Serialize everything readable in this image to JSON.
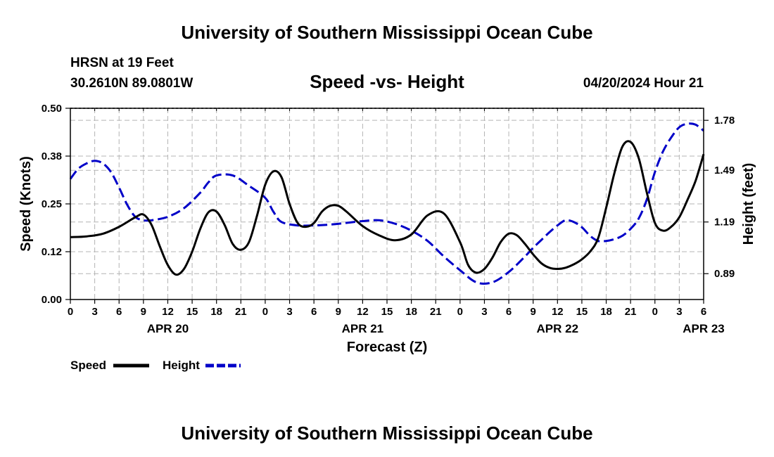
{
  "title": "University of Southern Mississippi Ocean Cube",
  "footer_title": "University of Southern Mississippi Ocean Cube",
  "station": "HRSN at 19 Feet",
  "coords": "30.2610N  89.0801W",
  "datetime": "04/20/2024 Hour 21",
  "colors": {
    "speed": "#000000",
    "height": "#0000c8",
    "grid": "#b4b4b4"
  },
  "chart_data": {
    "type": "line",
    "title": "Speed -vs- Height",
    "xlabel": "Forecast (Z)",
    "ylabel": "Speed (Knots)",
    "y2label": "Height (feet)",
    "x_range_hours": [
      0,
      78
    ],
    "ylim": [
      0.0,
      0.5
    ],
    "y2lim": [
      0.74,
      1.85
    ],
    "y_ticks": [
      "0.00",
      "0.12",
      "0.25",
      "0.38",
      "0.50"
    ],
    "y_tick_values": [
      0.0,
      0.125,
      0.25,
      0.375,
      0.5
    ],
    "y2_ticks": [
      "0.89",
      "1.19",
      "1.49",
      "1.78"
    ],
    "y2_tick_values": [
      0.89,
      1.19,
      1.49,
      1.78
    ],
    "x_tick_labels": [
      "0",
      "3",
      "6",
      "9",
      "12",
      "15",
      "18",
      "21",
      "0",
      "3",
      "6",
      "9",
      "12",
      "15",
      "18",
      "21",
      "0",
      "3",
      "6",
      "9",
      "12",
      "15",
      "18",
      "21",
      "0",
      "3",
      "6"
    ],
    "date_labels": [
      {
        "label": "APR 20",
        "hour": 12
      },
      {
        "label": "APR 21",
        "hour": 36
      },
      {
        "label": "APR 22",
        "hour": 60
      },
      {
        "label": "APR 23",
        "hour": 78
      }
    ],
    "legend": [
      {
        "name": "Speed",
        "style": "solid"
      },
      {
        "name": "Height",
        "style": "dashed"
      }
    ],
    "series": [
      {
        "name": "Speed",
        "axis": "left",
        "style": "solid",
        "x": [
          0,
          2,
          4,
          6,
          8,
          9,
          10,
          11,
          12,
          13,
          14,
          15,
          16,
          17,
          18,
          19,
          20,
          21,
          22,
          23,
          24,
          25,
          26,
          27,
          28,
          29,
          30,
          31,
          32,
          33,
          34,
          36,
          38,
          40,
          42,
          44,
          46,
          48,
          49,
          50,
          51,
          52,
          53,
          54,
          55,
          56,
          57,
          58,
          59,
          60,
          61,
          62,
          63,
          64,
          65,
          66,
          67,
          68,
          69,
          70,
          71,
          72,
          73,
          74,
          75,
          76,
          77,
          78
        ],
        "values": [
          0.163,
          0.165,
          0.172,
          0.19,
          0.215,
          0.222,
          0.195,
          0.14,
          0.09,
          0.065,
          0.08,
          0.125,
          0.185,
          0.228,
          0.23,
          0.195,
          0.145,
          0.13,
          0.15,
          0.22,
          0.3,
          0.335,
          0.32,
          0.25,
          0.2,
          0.19,
          0.2,
          0.23,
          0.245,
          0.245,
          0.23,
          0.192,
          0.168,
          0.155,
          0.17,
          0.22,
          0.225,
          0.15,
          0.09,
          0.07,
          0.08,
          0.11,
          0.15,
          0.172,
          0.168,
          0.145,
          0.118,
          0.095,
          0.083,
          0.08,
          0.083,
          0.092,
          0.105,
          0.125,
          0.16,
          0.24,
          0.33,
          0.4,
          0.412,
          0.37,
          0.28,
          0.2,
          0.18,
          0.19,
          0.215,
          0.26,
          0.31,
          0.38
        ]
      },
      {
        "name": "Height",
        "axis": "right",
        "style": "dashed",
        "x": [
          0,
          1,
          2,
          3,
          4,
          5,
          6,
          7,
          8,
          9,
          10,
          12,
          14,
          16,
          17,
          18,
          20,
          22,
          24,
          25,
          26,
          28,
          30,
          32,
          34,
          36,
          38,
          40,
          42,
          44,
          46,
          48,
          50,
          52,
          54,
          56,
          57,
          58,
          59,
          60,
          61,
          62,
          63,
          64,
          65,
          66,
          67,
          68,
          69,
          70,
          71,
          72,
          73,
          74,
          75,
          76,
          77,
          78
        ],
        "values": [
          1.44,
          1.5,
          1.53,
          1.545,
          1.53,
          1.48,
          1.39,
          1.29,
          1.22,
          1.2,
          1.2,
          1.22,
          1.27,
          1.36,
          1.42,
          1.46,
          1.46,
          1.4,
          1.33,
          1.25,
          1.19,
          1.17,
          1.17,
          1.175,
          1.185,
          1.195,
          1.2,
          1.18,
          1.14,
          1.08,
          0.99,
          0.91,
          0.84,
          0.84,
          0.9,
          0.99,
          1.04,
          1.085,
          1.13,
          1.17,
          1.2,
          1.19,
          1.16,
          1.11,
          1.08,
          1.08,
          1.09,
          1.11,
          1.15,
          1.21,
          1.32,
          1.48,
          1.6,
          1.68,
          1.74,
          1.76,
          1.755,
          1.72
        ]
      }
    ]
  }
}
